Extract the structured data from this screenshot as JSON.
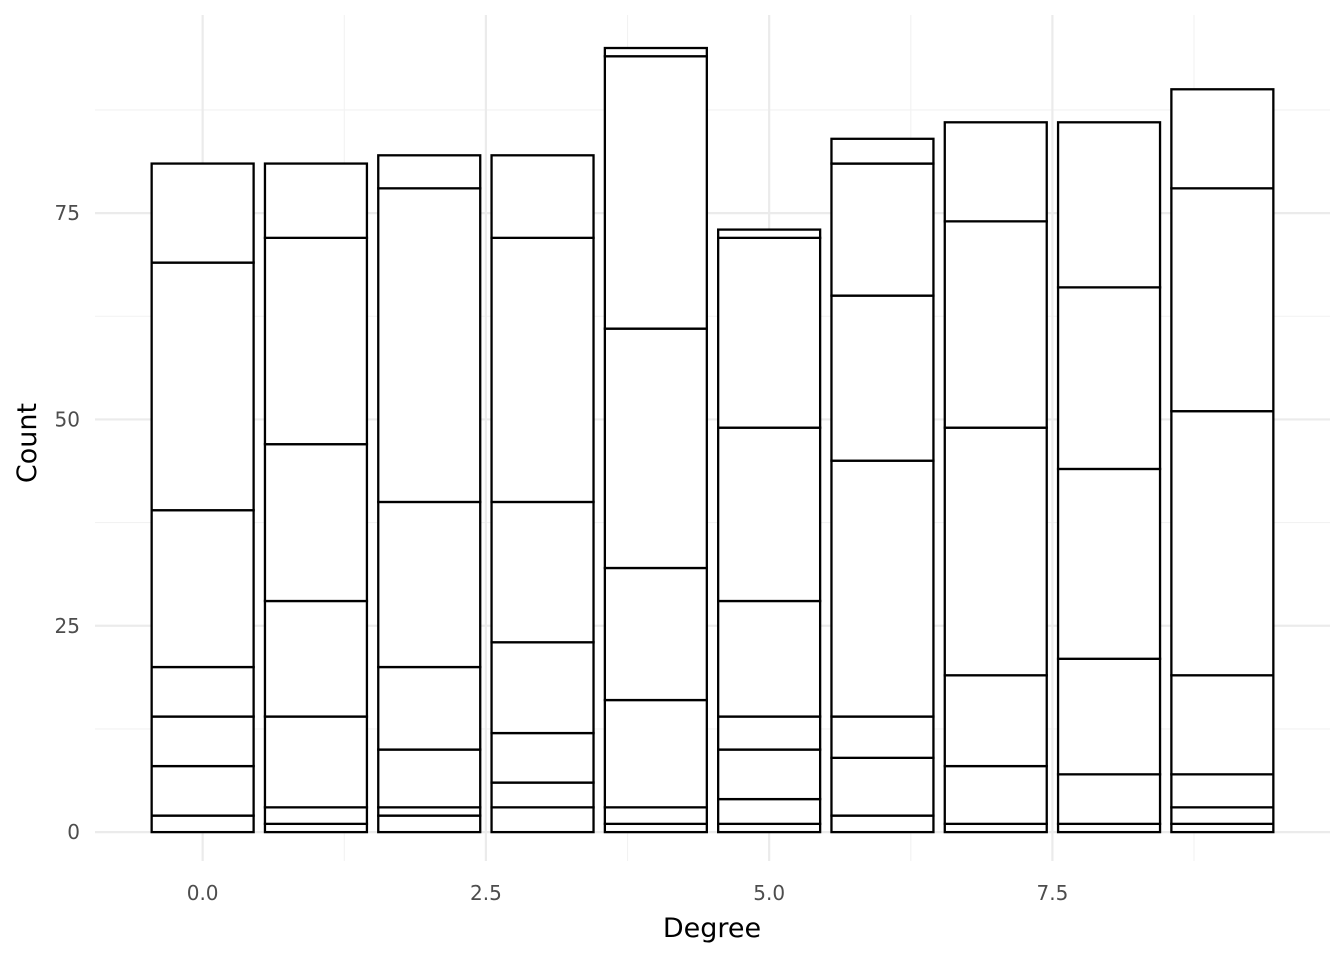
{
  "chart_data": {
    "type": "bar",
    "stacked": true,
    "fill": "#ffffff",
    "stroke": "#000000",
    "grid": true,
    "legend": "none",
    "title": "",
    "xlabel": "Degree",
    "ylabel": "Count",
    "xlim": [
      -0.95,
      9.95
    ],
    "ylim": [
      -3.5,
      99
    ],
    "x_major_ticks": [
      0.0,
      2.5,
      5.0,
      7.5
    ],
    "x_tick_labels": [
      "0.0",
      "2.5",
      "5.0",
      "7.5"
    ],
    "x_minor_ticks": [
      1.25,
      3.75,
      6.25,
      8.75
    ],
    "y_major_ticks": [
      0,
      25,
      50,
      75
    ],
    "y_tick_labels": [
      "0",
      "25",
      "50",
      "75"
    ],
    "y_minor_ticks": [
      12.5,
      37.5,
      62.5,
      87.5
    ],
    "bar_width": 0.9,
    "x": [
      0,
      1,
      2,
      3,
      4,
      5,
      6,
      7,
      8,
      9
    ],
    "stack_boundaries": [
      [
        0,
        2,
        8,
        14,
        20,
        39,
        69,
        81
      ],
      [
        0,
        1,
        3,
        14,
        28,
        47,
        72,
        81
      ],
      [
        0,
        2,
        3,
        10,
        20,
        40,
        78,
        82
      ],
      [
        0,
        3,
        6,
        12,
        23,
        40,
        72,
        82
      ],
      [
        0,
        1,
        3,
        16,
        32,
        61,
        94,
        95
      ],
      [
        0,
        1,
        4,
        10,
        14,
        28,
        49,
        72,
        73
      ],
      [
        0,
        2,
        9,
        14,
        45,
        65,
        81,
        84
      ],
      [
        0,
        1,
        8,
        19,
        49,
        74,
        86
      ],
      [
        0,
        1,
        7,
        21,
        44,
        66,
        86
      ],
      [
        0,
        1,
        3,
        7,
        19,
        51,
        78,
        90
      ]
    ],
    "totals": [
      81,
      81,
      82,
      82,
      95,
      73,
      84,
      86,
      86,
      90
    ]
  }
}
